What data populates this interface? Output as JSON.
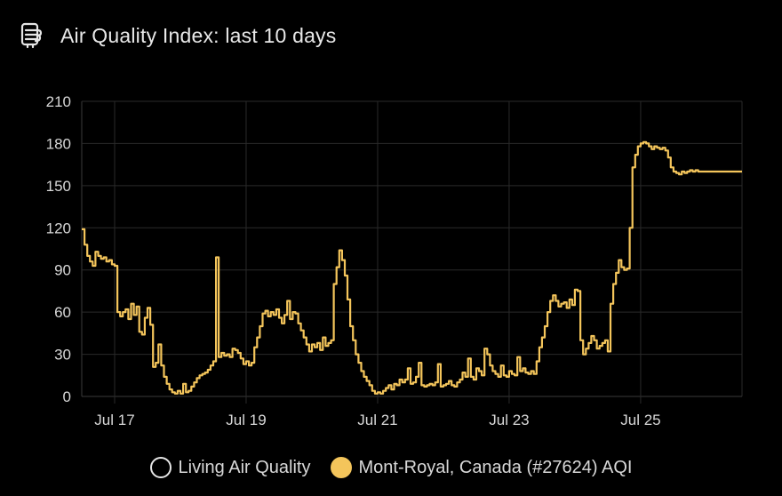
{
  "card": {
    "title": "Air Quality Index: last 10 days",
    "icon": "air-quality-icon"
  },
  "legend": [
    {
      "label": "Living Air Quality",
      "style": "hollow",
      "color": "#e6e6e6"
    },
    {
      "label": "Mont-Royal, Canada (#27624) AQI",
      "style": "filled",
      "color": "#f4c55b"
    }
  ],
  "chart_data": {
    "type": "line",
    "title": "",
    "xlabel": "",
    "ylabel": "",
    "ylim": [
      0,
      210
    ],
    "yticks": [
      0,
      30,
      60,
      90,
      120,
      150,
      180,
      210
    ],
    "xlim": [
      "Jul 16 12:00",
      "Jul 26 13:00"
    ],
    "xticks": [
      {
        "label": "Jul 17",
        "at": "Jul 17 00:00"
      },
      {
        "label": "Jul 19",
        "at": "Jul 19 00:00"
      },
      {
        "label": "Jul 21",
        "at": "Jul 21 00:00"
      },
      {
        "label": "Jul 23",
        "at": "Jul 23 00:00"
      },
      {
        "label": "Jul 25",
        "at": "Jul 25 00:00"
      }
    ],
    "grid": true,
    "line_color": "#f4c55b",
    "series": [
      {
        "name": "Mont-Royal, Canada (#27624) AQI",
        "step": true,
        "points": [
          [
            "Jul 16 12:00",
            119
          ],
          [
            "Jul 16 13:00",
            108
          ],
          [
            "Jul 16 14:00",
            100
          ],
          [
            "Jul 16 15:00",
            96
          ],
          [
            "Jul 16 16:00",
            93
          ],
          [
            "Jul 16 17:00",
            103
          ],
          [
            "Jul 16 18:00",
            100
          ],
          [
            "Jul 16 19:00",
            98
          ],
          [
            "Jul 16 20:00",
            99
          ],
          [
            "Jul 16 21:00",
            96
          ],
          [
            "Jul 16 22:00",
            97
          ],
          [
            "Jul 16 23:00",
            94
          ],
          [
            "Jul 17 00:00",
            93
          ],
          [
            "Jul 17 01:00",
            60
          ],
          [
            "Jul 17 02:00",
            57
          ],
          [
            "Jul 17 03:00",
            60
          ],
          [
            "Jul 17 04:00",
            62
          ],
          [
            "Jul 17 05:00",
            55
          ],
          [
            "Jul 17 06:00",
            66
          ],
          [
            "Jul 17 07:00",
            58
          ],
          [
            "Jul 17 08:00",
            64
          ],
          [
            "Jul 17 09:00",
            46
          ],
          [
            "Jul 17 10:00",
            44
          ],
          [
            "Jul 17 11:00",
            56
          ],
          [
            "Jul 17 12:00",
            63
          ],
          [
            "Jul 17 13:00",
            51
          ],
          [
            "Jul 17 14:00",
            21
          ],
          [
            "Jul 17 15:00",
            24
          ],
          [
            "Jul 17 16:00",
            37
          ],
          [
            "Jul 17 17:00",
            22
          ],
          [
            "Jul 17 18:00",
            14
          ],
          [
            "Jul 17 19:00",
            9
          ],
          [
            "Jul 17 20:00",
            5
          ],
          [
            "Jul 17 21:00",
            3
          ],
          [
            "Jul 17 22:00",
            2
          ],
          [
            "Jul 17 23:00",
            4
          ],
          [
            "Jul 18 00:00",
            2
          ],
          [
            "Jul 18 01:00",
            9
          ],
          [
            "Jul 18 02:00",
            3
          ],
          [
            "Jul 18 03:00",
            4
          ],
          [
            "Jul 18 04:00",
            7
          ],
          [
            "Jul 18 05:00",
            10
          ],
          [
            "Jul 18 06:00",
            13
          ],
          [
            "Jul 18 07:00",
            15
          ],
          [
            "Jul 18 08:00",
            16
          ],
          [
            "Jul 18 09:00",
            17
          ],
          [
            "Jul 18 10:00",
            19
          ],
          [
            "Jul 18 11:00",
            22
          ],
          [
            "Jul 18 12:00",
            25
          ],
          [
            "Jul 18 13:00",
            99
          ],
          [
            "Jul 18 14:00",
            28
          ],
          [
            "Jul 18 15:00",
            31
          ],
          [
            "Jul 18 16:00",
            29
          ],
          [
            "Jul 18 17:00",
            30
          ],
          [
            "Jul 18 18:00",
            28
          ],
          [
            "Jul 18 19:00",
            34
          ],
          [
            "Jul 18 20:00",
            33
          ],
          [
            "Jul 18 21:00",
            31
          ],
          [
            "Jul 18 22:00",
            27
          ],
          [
            "Jul 18 23:00",
            23
          ],
          [
            "Jul 19 00:00",
            25
          ],
          [
            "Jul 19 01:00",
            22
          ],
          [
            "Jul 19 02:00",
            24
          ],
          [
            "Jul 19 03:00",
            35
          ],
          [
            "Jul 19 04:00",
            42
          ],
          [
            "Jul 19 05:00",
            50
          ],
          [
            "Jul 19 06:00",
            59
          ],
          [
            "Jul 19 07:00",
            61
          ],
          [
            "Jul 19 08:00",
            57
          ],
          [
            "Jul 19 09:00",
            60
          ],
          [
            "Jul 19 10:00",
            58
          ],
          [
            "Jul 19 11:00",
            62
          ],
          [
            "Jul 19 12:00",
            56
          ],
          [
            "Jul 19 13:00",
            52
          ],
          [
            "Jul 19 14:00",
            58
          ],
          [
            "Jul 19 15:00",
            68
          ],
          [
            "Jul 19 16:00",
            55
          ],
          [
            "Jul 19 17:00",
            60
          ],
          [
            "Jul 19 18:00",
            59
          ],
          [
            "Jul 19 19:00",
            52
          ],
          [
            "Jul 19 20:00",
            47
          ],
          [
            "Jul 19 21:00",
            42
          ],
          [
            "Jul 19 22:00",
            37
          ],
          [
            "Jul 19 23:00",
            32
          ],
          [
            "Jul 20 00:00",
            37
          ],
          [
            "Jul 20 01:00",
            35
          ],
          [
            "Jul 20 02:00",
            38
          ],
          [
            "Jul 20 03:00",
            33
          ],
          [
            "Jul 20 04:00",
            42
          ],
          [
            "Jul 20 05:00",
            36
          ],
          [
            "Jul 20 06:00",
            38
          ],
          [
            "Jul 20 07:00",
            40
          ],
          [
            "Jul 20 08:00",
            80
          ],
          [
            "Jul 20 09:00",
            92
          ],
          [
            "Jul 20 10:00",
            104
          ],
          [
            "Jul 20 11:00",
            97
          ],
          [
            "Jul 20 12:00",
            86
          ],
          [
            "Jul 20 13:00",
            69
          ],
          [
            "Jul 20 14:00",
            50
          ],
          [
            "Jul 20 15:00",
            40
          ],
          [
            "Jul 20 16:00",
            30
          ],
          [
            "Jul 20 17:00",
            24
          ],
          [
            "Jul 20 18:00",
            18
          ],
          [
            "Jul 20 19:00",
            14
          ],
          [
            "Jul 20 20:00",
            11
          ],
          [
            "Jul 20 21:00",
            8
          ],
          [
            "Jul 20 22:00",
            4
          ],
          [
            "Jul 20 23:00",
            2
          ],
          [
            "Jul 21 00:00",
            3
          ],
          [
            "Jul 21 01:00",
            2
          ],
          [
            "Jul 21 02:00",
            4
          ],
          [
            "Jul 21 03:00",
            6
          ],
          [
            "Jul 21 04:00",
            8
          ],
          [
            "Jul 21 05:00",
            5
          ],
          [
            "Jul 21 06:00",
            9
          ],
          [
            "Jul 21 07:00",
            8
          ],
          [
            "Jul 21 08:00",
            12
          ],
          [
            "Jul 21 09:00",
            10
          ],
          [
            "Jul 21 10:00",
            12
          ],
          [
            "Jul 21 11:00",
            20
          ],
          [
            "Jul 21 12:00",
            9
          ],
          [
            "Jul 21 13:00",
            10
          ],
          [
            "Jul 21 14:00",
            14
          ],
          [
            "Jul 21 15:00",
            24
          ],
          [
            "Jul 21 16:00",
            8
          ],
          [
            "Jul 21 17:00",
            7
          ],
          [
            "Jul 21 18:00",
            8
          ],
          [
            "Jul 21 19:00",
            9
          ],
          [
            "Jul 21 20:00",
            8
          ],
          [
            "Jul 21 21:00",
            10
          ],
          [
            "Jul 21 22:00",
            23
          ],
          [
            "Jul 21 23:00",
            7
          ],
          [
            "Jul 22 00:00",
            8
          ],
          [
            "Jul 22 01:00",
            9
          ],
          [
            "Jul 22 02:00",
            11
          ],
          [
            "Jul 22 03:00",
            8
          ],
          [
            "Jul 22 04:00",
            7
          ],
          [
            "Jul 22 05:00",
            10
          ],
          [
            "Jul 22 06:00",
            12
          ],
          [
            "Jul 22 07:00",
            17
          ],
          [
            "Jul 22 08:00",
            14
          ],
          [
            "Jul 22 09:00",
            27
          ],
          [
            "Jul 22 10:00",
            14
          ],
          [
            "Jul 22 11:00",
            12
          ],
          [
            "Jul 22 12:00",
            20
          ],
          [
            "Jul 22 13:00",
            18
          ],
          [
            "Jul 22 14:00",
            15
          ],
          [
            "Jul 22 15:00",
            34
          ],
          [
            "Jul 22 16:00",
            30
          ],
          [
            "Jul 22 17:00",
            22
          ],
          [
            "Jul 22 18:00",
            18
          ],
          [
            "Jul 22 19:00",
            16
          ],
          [
            "Jul 22 20:00",
            14
          ],
          [
            "Jul 22 21:00",
            22
          ],
          [
            "Jul 22 22:00",
            15
          ],
          [
            "Jul 22 23:00",
            14
          ],
          [
            "Jul 23 00:00",
            18
          ],
          [
            "Jul 23 01:00",
            16
          ],
          [
            "Jul 23 02:00",
            15
          ],
          [
            "Jul 23 03:00",
            28
          ],
          [
            "Jul 23 04:00",
            18
          ],
          [
            "Jul 23 05:00",
            20
          ],
          [
            "Jul 23 06:00",
            17
          ],
          [
            "Jul 23 07:00",
            16
          ],
          [
            "Jul 23 08:00",
            18
          ],
          [
            "Jul 23 09:00",
            16
          ],
          [
            "Jul 23 10:00",
            25
          ],
          [
            "Jul 23 11:00",
            35
          ],
          [
            "Jul 23 12:00",
            42
          ],
          [
            "Jul 23 13:00",
            50
          ],
          [
            "Jul 23 14:00",
            60
          ],
          [
            "Jul 23 15:00",
            68
          ],
          [
            "Jul 23 16:00",
            72
          ],
          [
            "Jul 23 17:00",
            68
          ],
          [
            "Jul 23 18:00",
            64
          ],
          [
            "Jul 23 19:00",
            66
          ],
          [
            "Jul 23 20:00",
            67
          ],
          [
            "Jul 23 21:00",
            63
          ],
          [
            "Jul 23 22:00",
            69
          ],
          [
            "Jul 23 23:00",
            65
          ],
          [
            "Jul 24 00:00",
            76
          ],
          [
            "Jul 24 01:00",
            75
          ],
          [
            "Jul 24 02:00",
            40
          ],
          [
            "Jul 24 03:00",
            30
          ],
          [
            "Jul 24 04:00",
            34
          ],
          [
            "Jul 24 05:00",
            38
          ],
          [
            "Jul 24 06:00",
            43
          ],
          [
            "Jul 24 07:00",
            40
          ],
          [
            "Jul 24 08:00",
            34
          ],
          [
            "Jul 24 09:00",
            36
          ],
          [
            "Jul 24 10:00",
            38
          ],
          [
            "Jul 24 11:00",
            40
          ],
          [
            "Jul 24 12:00",
            32
          ],
          [
            "Jul 24 13:00",
            66
          ],
          [
            "Jul 24 14:00",
            80
          ],
          [
            "Jul 24 15:00",
            88
          ],
          [
            "Jul 24 16:00",
            97
          ],
          [
            "Jul 24 17:00",
            92
          ],
          [
            "Jul 24 18:00",
            90
          ],
          [
            "Jul 24 19:00",
            91
          ],
          [
            "Jul 24 20:00",
            120
          ],
          [
            "Jul 24 21:00",
            163
          ],
          [
            "Jul 24 22:00",
            172
          ],
          [
            "Jul 24 23:00",
            178
          ],
          [
            "Jul 25 00:00",
            180
          ],
          [
            "Jul 25 01:00",
            181
          ],
          [
            "Jul 25 02:00",
            180
          ],
          [
            "Jul 25 03:00",
            178
          ],
          [
            "Jul 25 04:00",
            176
          ],
          [
            "Jul 25 05:00",
            178
          ],
          [
            "Jul 25 06:00",
            177
          ],
          [
            "Jul 25 07:00",
            176
          ],
          [
            "Jul 25 08:00",
            177
          ],
          [
            "Jul 25 09:00",
            175
          ],
          [
            "Jul 25 10:00",
            170
          ],
          [
            "Jul 25 11:00",
            163
          ],
          [
            "Jul 25 12:00",
            160
          ],
          [
            "Jul 25 13:00",
            159
          ],
          [
            "Jul 25 14:00",
            158
          ],
          [
            "Jul 25 15:00",
            160
          ],
          [
            "Jul 25 16:00",
            159
          ],
          [
            "Jul 25 17:00",
            160
          ],
          [
            "Jul 25 18:00",
            161
          ],
          [
            "Jul 25 19:00",
            160
          ],
          [
            "Jul 25 20:00",
            161
          ],
          [
            "Jul 25 21:00",
            160
          ],
          [
            "Jul 25 22:00",
            160
          ],
          [
            "Jul 25 23:00",
            160
          ]
        ]
      }
    ]
  }
}
